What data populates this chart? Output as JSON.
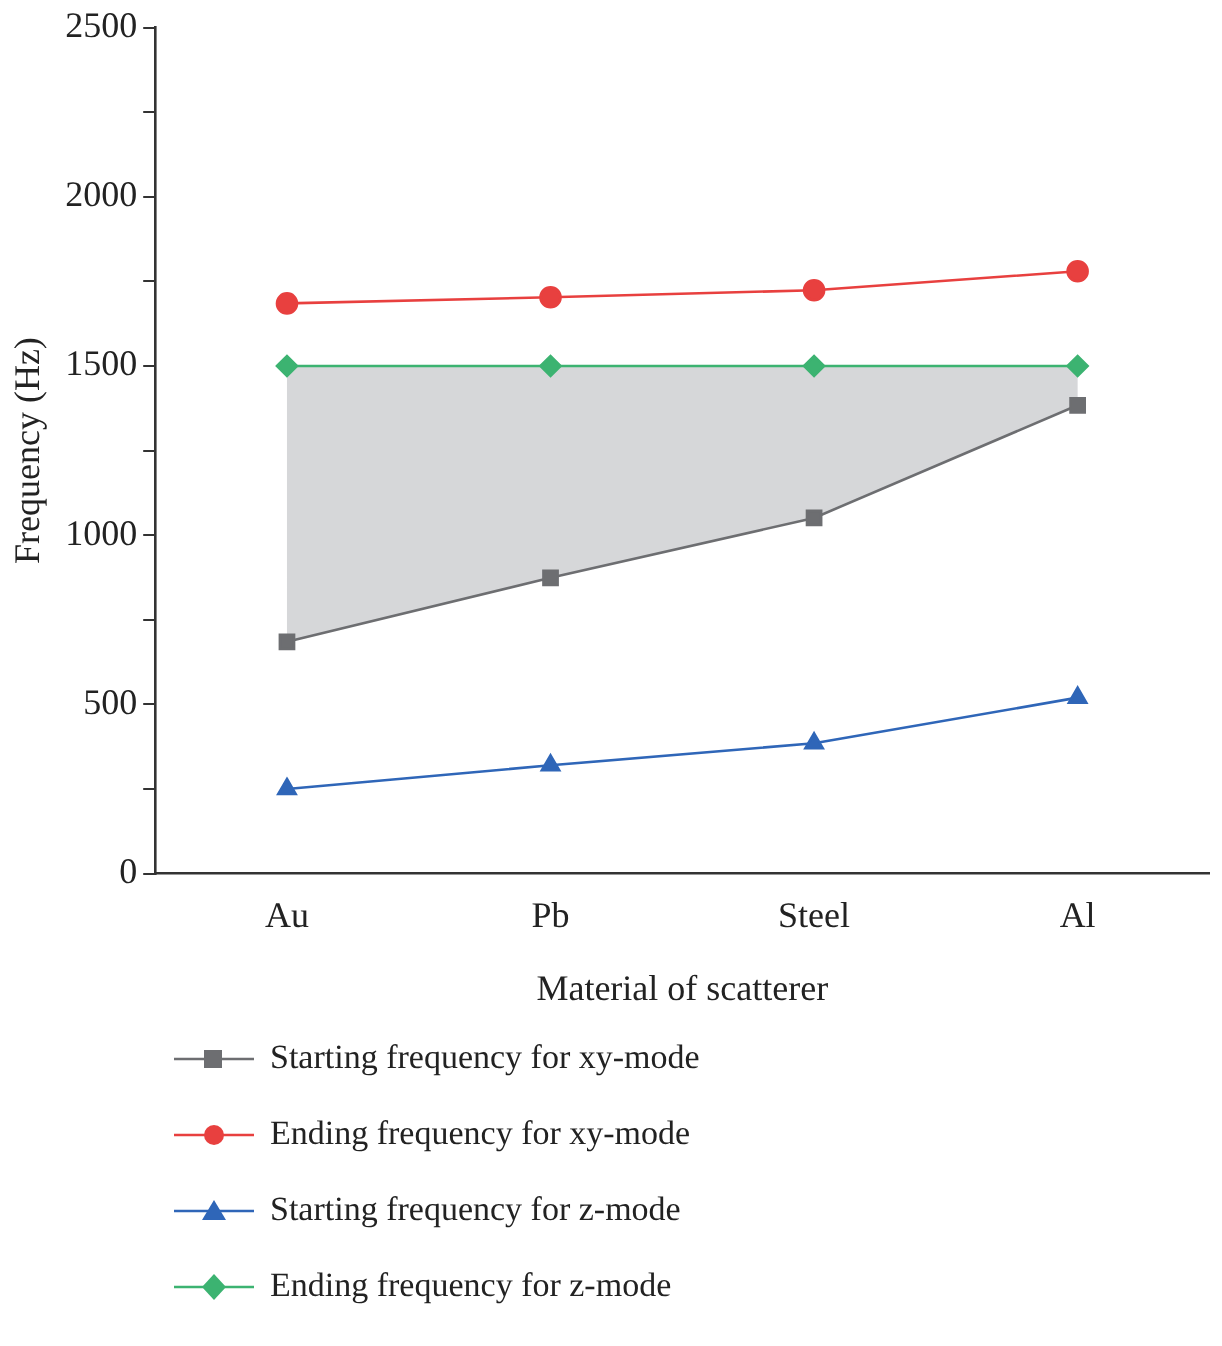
{
  "chart_data": {
    "type": "line",
    "xlabel": "Material of scatterer",
    "ylabel": "Frequency (Hz)",
    "categories": [
      "Au",
      "Pb",
      "Steel",
      "Al"
    ],
    "series": [
      {
        "name": "Starting frequency for xy-mode",
        "color": "#6d6e71",
        "marker": "square",
        "values": [
          685,
          874,
          1051,
          1384
        ]
      },
      {
        "name": "Ending frequency for xy-mode",
        "color": "#e8403f",
        "marker": "circle",
        "values": [
          1685,
          1703,
          1724,
          1780
        ]
      },
      {
        "name": "Starting frequency for z-mode",
        "color": "#2f66b8",
        "marker": "triangle",
        "values": [
          250,
          320,
          385,
          520
        ]
      },
      {
        "name": "Ending frequency for z-mode",
        "color": "#3cb371",
        "marker": "diamond",
        "values": [
          1500,
          1500,
          1500,
          1500
        ],
        "lower": [
          685,
          874,
          1051,
          1384
        ],
        "upper": [
          1500,
          1500,
          1500,
          1500
        ]
      }
    ],
    "ylim": [
      0,
      2500
    ],
    "yticks": [
      0,
      {
        "value": 250,
        "label": null
      },
      500,
      {
        "value": 750,
        "label": null
      },
      1000,
      {
        "value": 1250,
        "label": null
      },
      1500,
      {
        "value": 1750,
        "label": null
      },
      2000,
      {
        "value": 2250,
        "label": null
      },
      2500
    ],
    "grid": false,
    "legend": "bottom",
    "line_style": "solid"
  }
}
